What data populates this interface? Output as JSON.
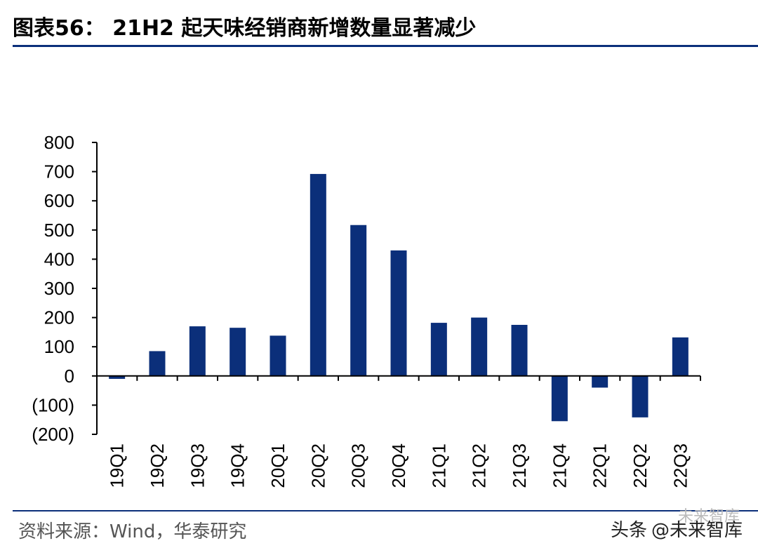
{
  "title": "图表56： 21H2 起天味经销商新增数量显著减少",
  "source": "资料来源：Wind，华泰研究",
  "watermark": {
    "prefix": "头条",
    "handle": "@未来智库",
    "logo_text": "未来智库"
  },
  "colors": {
    "bar": "#0b2f7a",
    "rule": "#0b2f7a",
    "axis": "#000000"
  },
  "chart_data": {
    "type": "bar",
    "categories": [
      "19Q1",
      "19Q2",
      "19Q3",
      "19Q4",
      "20Q1",
      "20Q2",
      "20Q3",
      "20Q4",
      "21Q1",
      "21Q2",
      "21Q3",
      "21Q4",
      "22Q1",
      "22Q2",
      "22Q3"
    ],
    "values": [
      -10,
      85,
      170,
      165,
      138,
      692,
      517,
      430,
      182,
      200,
      175,
      -155,
      -40,
      -142,
      132
    ],
    "ylim": [
      -200,
      800
    ],
    "yticks": [
      800,
      700,
      600,
      500,
      400,
      300,
      200,
      100,
      0,
      -100,
      -200
    ],
    "ytick_labels": [
      "800",
      "700",
      "600",
      "500",
      "400",
      "300",
      "200",
      "100",
      "0",
      "(100)",
      "(200)"
    ],
    "xlabel": "",
    "ylabel": "",
    "grid": false,
    "legend": "none"
  }
}
